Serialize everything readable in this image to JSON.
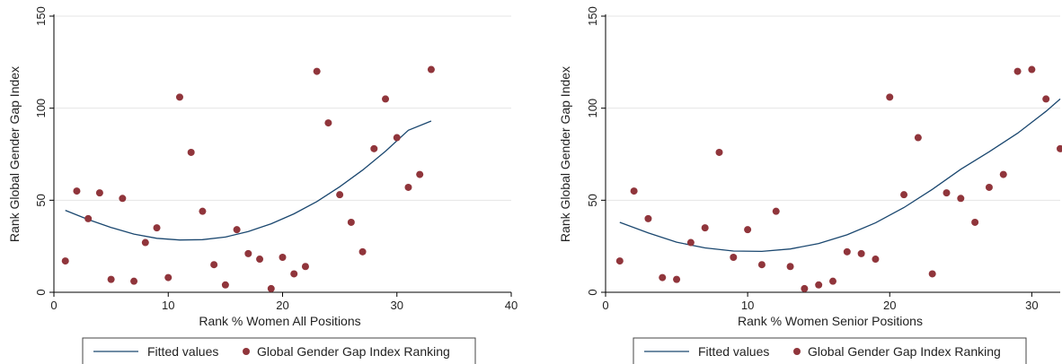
{
  "colors": {
    "fit_line": "#1a476f",
    "marker": "#90353b",
    "grid": "#e4e4e4",
    "axis": "#000000"
  },
  "legend": {
    "fitted_label": "Fitted values",
    "points_label": "Global Gender Gap Index Ranking"
  },
  "chart_data": [
    {
      "type": "scatter",
      "title": "",
      "xlabel": "Rank % Women All Positions",
      "ylabel": "Rank Global Gender Gap Index",
      "xlim": [
        0,
        40
      ],
      "ylim": [
        0,
        150
      ],
      "xticks": [
        0,
        10,
        20,
        30,
        40
      ],
      "yticks": [
        0,
        50,
        100,
        150
      ],
      "grid": "horizontal",
      "legend_position": "bottom",
      "series": [
        {
          "name": "Global Gender Gap Index Ranking",
          "kind": "points",
          "x": [
            1,
            2,
            3,
            4,
            5,
            6,
            7,
            8,
            9,
            10,
            11,
            12,
            13,
            14,
            15,
            16,
            17,
            18,
            19,
            20,
            21,
            22,
            23,
            24,
            25,
            26,
            27,
            28,
            29,
            30,
            31,
            32,
            33
          ],
          "y": [
            17,
            55,
            40,
            54,
            7,
            51,
            6,
            27,
            35,
            8,
            106,
            76,
            44,
            15,
            4,
            34,
            21,
            18,
            2,
            19,
            10,
            14,
            120,
            92,
            53,
            38,
            22,
            78,
            105,
            84,
            57,
            64,
            121
          ]
        },
        {
          "name": "Fitted values",
          "kind": "fit",
          "x": [
            1,
            3,
            5,
            7,
            9,
            11,
            13,
            15,
            17,
            19,
            21,
            23,
            25,
            27,
            29,
            31,
            33
          ],
          "y": [
            44.5,
            39.5,
            35.2,
            31.6,
            29.3,
            28.4,
            28.6,
            30.0,
            33.0,
            37.2,
            42.6,
            49.3,
            57.3,
            66.4,
            76.6,
            88.0,
            93.0
          ]
        }
      ]
    },
    {
      "type": "scatter",
      "title": "",
      "xlabel": "Rank % Women Senior Positions",
      "ylabel": "Rank Global Gender Gap Index",
      "xlim": [
        0,
        32
      ],
      "ylim": [
        0,
        150
      ],
      "xticks": [
        0,
        10,
        20,
        30
      ],
      "yticks": [
        0,
        50,
        100,
        150
      ],
      "grid": "horizontal",
      "legend_position": "bottom",
      "series": [
        {
          "name": "Global Gender Gap Index Ranking",
          "kind": "points",
          "x": [
            1,
            2,
            3,
            4,
            5,
            6,
            7,
            8,
            9,
            10,
            11,
            12,
            13,
            14,
            15,
            16,
            17,
            18,
            19,
            20,
            21,
            22,
            23,
            24,
            25,
            26,
            27,
            28,
            29,
            30,
            31,
            32
          ],
          "y": [
            17,
            55,
            40,
            8,
            7,
            27,
            35,
            76,
            19,
            34,
            15,
            44,
            14,
            2,
            4,
            6,
            22,
            21,
            18,
            106,
            53,
            84,
            10,
            54,
            51,
            38,
            57,
            64,
            120,
            121,
            105,
            78
          ]
        },
        {
          "name": "Fitted values",
          "kind": "fit",
          "x": [
            1,
            3,
            5,
            7,
            9,
            11,
            13,
            15,
            17,
            19,
            21,
            23,
            25,
            27,
            29,
            31,
            32
          ],
          "y": [
            38,
            32.3,
            27.2,
            24.1,
            22.4,
            22.2,
            23.5,
            26.5,
            31.2,
            37.7,
            46.0,
            55.9,
            66.8,
            76.3,
            86.4,
            98.3,
            105
          ]
        }
      ]
    }
  ]
}
